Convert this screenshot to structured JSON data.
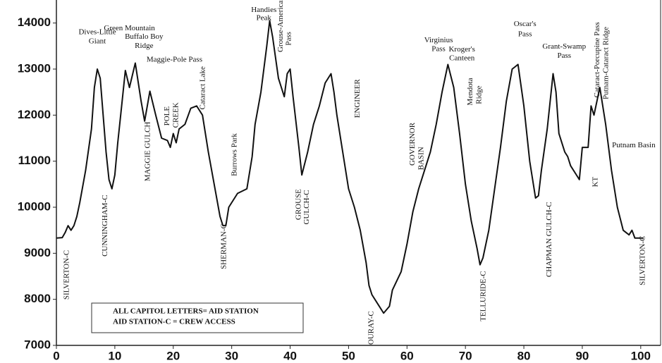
{
  "chart_data": {
    "type": "line",
    "x": [
      0,
      1,
      1.5,
      2,
      2.5,
      3,
      3.5,
      4,
      5,
      6,
      6.5,
      7,
      7.5,
      8,
      8.5,
      9,
      9.5,
      10,
      10.5,
      11,
      11.8,
      12.5,
      13.5,
      14.5,
      15.1,
      16,
      17,
      18,
      19,
      19.5,
      20,
      20.5,
      21,
      22,
      23,
      24,
      25,
      26,
      27,
      28,
      28.5,
      29,
      29.5,
      31,
      32.6,
      33.5,
      34,
      35,
      36,
      36.5,
      37,
      38,
      39,
      39.5,
      40,
      40.5,
      41.5,
      42,
      43,
      44,
      45,
      46,
      47,
      47.5,
      48,
      49,
      50,
      51,
      52,
      53,
      53.5,
      54,
      55,
      56,
      57,
      57.5,
      59,
      60,
      61,
      62,
      63,
      64,
      65,
      66,
      67,
      68,
      69,
      70,
      71,
      72,
      72.5,
      73,
      74,
      75,
      76,
      77,
      78,
      78.5,
      79,
      80,
      81,
      82,
      82.5,
      83,
      84,
      85,
      85.5,
      86,
      87,
      87.5,
      88,
      89,
      89.5,
      90,
      91,
      91.5,
      92,
      93,
      94,
      95,
      96,
      97,
      98,
      98.5,
      99,
      100.5
    ],
    "series": [
      {
        "color": "#111111",
        "values": [
          9330,
          9340,
          9450,
          9600,
          9500,
          9600,
          9800,
          10100,
          10800,
          11700,
          12600,
          13000,
          12800,
          12000,
          11200,
          10600,
          10400,
          10700,
          11400,
          12000,
          12970,
          12600,
          13130,
          12300,
          11870,
          12520,
          12000,
          11500,
          11450,
          11300,
          11600,
          11400,
          11700,
          11800,
          12150,
          12200,
          12000,
          11200,
          10500,
          9800,
          9600,
          9600,
          10000,
          10300,
          10400,
          11100,
          11800,
          12500,
          13500,
          14050,
          13700,
          12800,
          12400,
          12900,
          13000,
          12400,
          11300,
          10700,
          11200,
          11800,
          12200,
          12700,
          12900,
          12500,
          12000,
          11200,
          10400,
          10000,
          9500,
          8800,
          8300,
          8100,
          7900,
          7700,
          7850,
          8200,
          8600,
          9200,
          9900,
          10400,
          10800,
          11200,
          11800,
          12500,
          13100,
          12600,
          11600,
          10500,
          9700,
          9100,
          8750,
          8900,
          9500,
          10400,
          11300,
          12300,
          13000,
          13050,
          13100,
          12200,
          11000,
          10200,
          10250,
          10800,
          11700,
          12900,
          12500,
          11600,
          11200,
          11100,
          10900,
          10700,
          10600,
          11300,
          11300,
          12200,
          12000,
          12600,
          11800,
          10800,
          10000,
          9500,
          9400,
          9500,
          9330,
          9330
        ]
      }
    ],
    "xlim": [
      0,
      103.4
    ],
    "ylim": [
      7000,
      14500
    ],
    "xticks": [
      0,
      10,
      20,
      30,
      40,
      50,
      60,
      70,
      80,
      90,
      100
    ],
    "yticks": [
      7000,
      8000,
      9000,
      10000,
      11000,
      12000,
      13000,
      14000
    ],
    "labels": [
      {
        "text": "Dives-Little",
        "x": 7,
        "y": 13800
      },
      {
        "text": "Giant",
        "x": 7,
        "y": 13600
      },
      {
        "text": "Green Mountain",
        "x": 12.5,
        "y": 13880
      },
      {
        "text": "Buffalo Boy",
        "x": 15,
        "y": 13700
      },
      {
        "text": "Ridge",
        "x": 15,
        "y": 13500
      },
      {
        "text": "Maggie-Pole Pass",
        "x": 20.2,
        "y": 13200
      },
      {
        "text": "Handies",
        "x": 35.5,
        "y": 14280
      },
      {
        "text": "Peak",
        "x": 35.5,
        "y": 14100
      },
      {
        "text": "Virginius",
        "x": 65.4,
        "y": 13620
      },
      {
        "text": "Pass",
        "x": 65.4,
        "y": 13430
      },
      {
        "text": "Kroger's",
        "x": 69.4,
        "y": 13420
      },
      {
        "text": "Canteen",
        "x": 69.4,
        "y": 13230
      },
      {
        "text": "Oscar's",
        "x": 80.2,
        "y": 13970
      },
      {
        "text": "Pass",
        "x": 80.2,
        "y": 13750
      },
      {
        "text": "Grant-Swamp",
        "x": 86.9,
        "y": 13480
      },
      {
        "text": "Pass",
        "x": 86.9,
        "y": 13280
      },
      {
        "text": "Putnam Basin",
        "x": 98.8,
        "y": 11340
      }
    ],
    "vertical_labels": [
      {
        "text": "SILVERTON-C",
        "x": 1.8,
        "y": 8530
      },
      {
        "text": "CUNNINGHAM-C",
        "x": 8.4,
        "y": 9600
      },
      {
        "text": "MAGGIE GULCH",
        "x": 15.7,
        "y": 11210
      },
      {
        "text": "POLE",
        "x": 19,
        "y": 11980
      },
      {
        "text": "CREEK",
        "x": 20.5,
        "y": 12000
      },
      {
        "text": "Cataract Lake",
        "x": 25.1,
        "y": 12590
      },
      {
        "text": "SHERMAN-C",
        "x": 28.7,
        "y": 9150
      },
      {
        "text": "Burrows Park",
        "x": 30.5,
        "y": 11140
      },
      {
        "text": "Grouse-American",
        "x": 38.4,
        "y": 13970
      },
      {
        "text": "Pass",
        "x": 39.8,
        "y": 13660
      },
      {
        "text": "GROUSE",
        "x": 41.5,
        "y": 10060
      },
      {
        "text": "GULCH-C",
        "x": 42.9,
        "y": 10000
      },
      {
        "text": "ENGINEER",
        "x": 51.6,
        "y": 12360
      },
      {
        "text": "OURAY-C",
        "x": 53.9,
        "y": 7380
      },
      {
        "text": "GOVERNOR",
        "x": 61,
        "y": 11370
      },
      {
        "text": "BASIN",
        "x": 62.5,
        "y": 11060
      },
      {
        "text": "Mendota",
        "x": 70.9,
        "y": 12510
      },
      {
        "text": "Ridge",
        "x": 72.4,
        "y": 12440
      },
      {
        "text": "TELLURIDE-C",
        "x": 73.1,
        "y": 8070
      },
      {
        "text": "CHAPMAN GULCH-C",
        "x": 84.4,
        "y": 9300
      },
      {
        "text": "KT",
        "x": 92.3,
        "y": 10550
      },
      {
        "text": "Cataract-Porcupine Pass",
        "x": 92.6,
        "y": 13200
      },
      {
        "text": "Putnam-Cataract Ridge",
        "x": 94.1,
        "y": 13130
      },
      {
        "text": "SILVERTON-C",
        "x": 100.4,
        "y": 8840
      }
    ],
    "note": [
      "ALL CAPITOL  LETTERS= AID STATION",
      "AID STATION-C = CREW ACCESS"
    ]
  }
}
